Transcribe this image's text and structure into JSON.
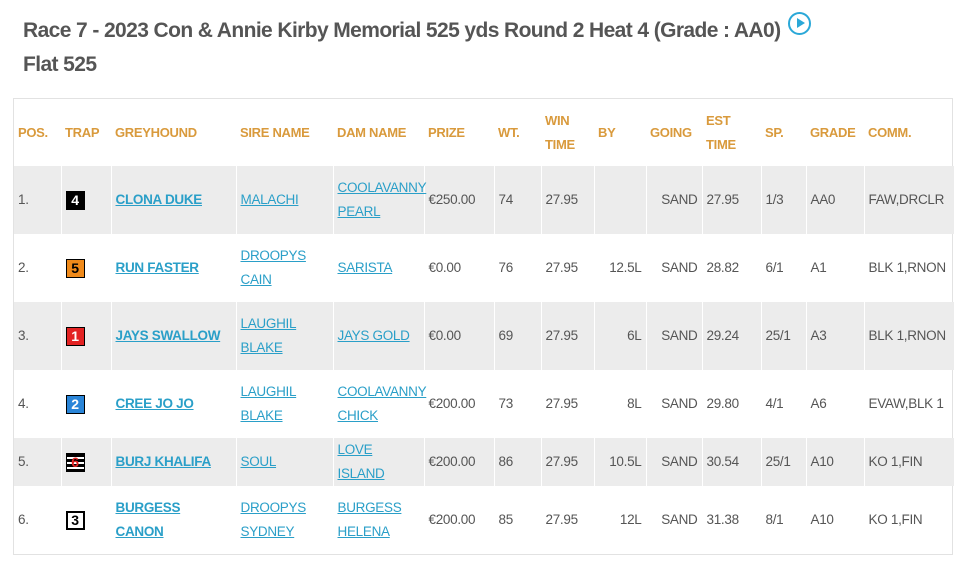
{
  "race": {
    "title": "Race 7 - 2023 Con & Annie Kirby Memorial 525 yds Round 2 Heat 4   (Grade : AA0) Flat 525"
  },
  "columns": {
    "pos": "POS.",
    "trap": "TRAP",
    "greyhound": "GREYHOUND",
    "sire": "SIRE NAME",
    "dam": "DAM NAME",
    "prize": "PRIZE",
    "wt": "WT.",
    "win_time": "WIN TIME",
    "by": "BY",
    "going": "GOING",
    "est_time": "EST TIME",
    "sp": "SP.",
    "grade": "GRADE",
    "comm": "COMM."
  },
  "icons": {
    "play": "play-circle-icon"
  },
  "colors": {
    "header_text": "#d99a3c",
    "link": "#2a9fc8",
    "row_alt": "#ececec"
  },
  "rows": [
    {
      "pos": "1.",
      "trap": "4",
      "greyhound": "CLONA DUKE",
      "sire": "MALACHI",
      "dam": "COOLAVANNY PEARL",
      "prize": "€250.00",
      "wt": "74",
      "win_time": "27.95",
      "by": "",
      "going": "SAND",
      "est_time": "27.95",
      "sp": "1/3",
      "grade": "AA0",
      "comm": "FAW,DRCLR"
    },
    {
      "pos": "2.",
      "trap": "5",
      "greyhound": "RUN FASTER",
      "sire": "DROOPYS CAIN",
      "dam": "SARISTA",
      "prize": "€0.00",
      "wt": "76",
      "win_time": "27.95",
      "by": "12.5L",
      "going": "SAND",
      "est_time": "28.82",
      "sp": "6/1",
      "grade": "A1",
      "comm": "BLK 1,RNON"
    },
    {
      "pos": "3.",
      "trap": "1",
      "greyhound": "JAYS SWALLOW",
      "sire": "LAUGHIL BLAKE",
      "dam": "JAYS GOLD",
      "prize": "€0.00",
      "wt": "69",
      "win_time": "27.95",
      "by": "6L",
      "going": "SAND",
      "est_time": "29.24",
      "sp": "25/1",
      "grade": "A3",
      "comm": "BLK 1,RNON"
    },
    {
      "pos": "4.",
      "trap": "2",
      "greyhound": "CREE JO JO",
      "sire": "LAUGHIL BLAKE",
      "dam": "COOLAVANNY CHICK",
      "prize": "€200.00",
      "wt": "73",
      "win_time": "27.95",
      "by": "8L",
      "going": "SAND",
      "est_time": "29.80",
      "sp": "4/1",
      "grade": "A6",
      "comm": "EVAW,BLK 1"
    },
    {
      "pos": "5.",
      "trap": "6",
      "greyhound": "BURJ KHALIFA",
      "sire": "SOUL",
      "dam": "LOVE ISLAND",
      "prize": "€200.00",
      "wt": "86",
      "win_time": "27.95",
      "by": "10.5L",
      "going": "SAND",
      "est_time": "30.54",
      "sp": "25/1",
      "grade": "A10",
      "comm": "KO 1,FIN"
    },
    {
      "pos": "6.",
      "trap": "3",
      "greyhound": "BURGESS CANON",
      "sire": "DROOPYS SYDNEY",
      "dam": "BURGESS HELENA",
      "prize": "€200.00",
      "wt": "85",
      "win_time": "27.95",
      "by": "12L",
      "going": "SAND",
      "est_time": "31.38",
      "sp": "8/1",
      "grade": "A10",
      "comm": "KO 1,FIN"
    }
  ]
}
